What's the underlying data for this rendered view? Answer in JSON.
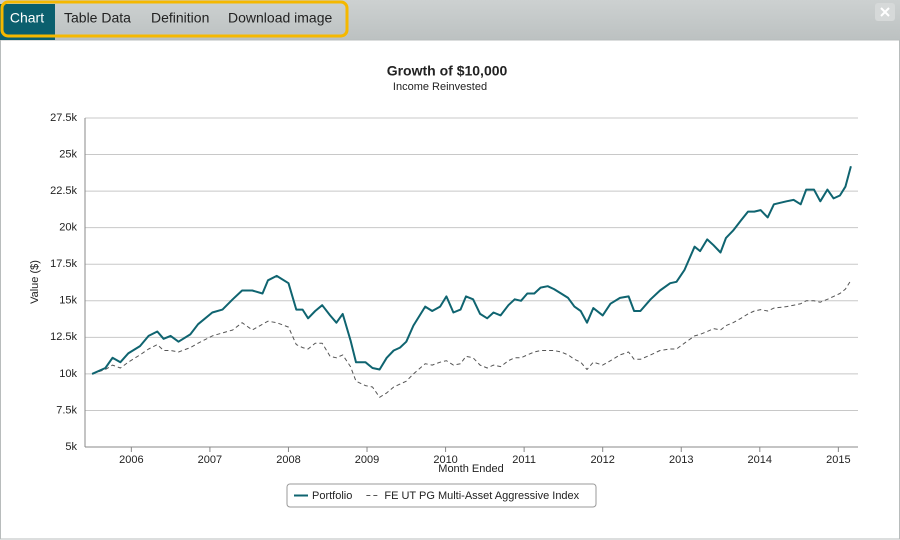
{
  "tabs": [
    "Chart",
    "Table Data",
    "Definition",
    "Download image"
  ],
  "chart_data": {
    "type": "line",
    "title": "Growth of $10,000",
    "subtitle": "Income Reinvested",
    "y_label": "Value ($)",
    "x_label": "Month Ended",
    "x": [
      2005.5,
      2005.67,
      2005.76,
      2005.86,
      2005.96,
      2006.11,
      2006.22,
      2006.33,
      2006.41,
      2006.5,
      2006.6,
      2006.75,
      2006.85,
      2007.03,
      2007.16,
      2007.29,
      2007.41,
      2007.54,
      2007.67,
      2007.74,
      2007.85,
      2008.0,
      2008.1,
      2008.18,
      2008.25,
      2008.34,
      2008.43,
      2008.53,
      2008.61,
      2008.69,
      2008.79,
      2008.86,
      2008.98,
      2009.07,
      2009.16,
      2009.25,
      2009.34,
      2009.42,
      2009.5,
      2009.59,
      2009.74,
      2009.83,
      2009.93,
      2010.01,
      2010.1,
      2010.19,
      2010.26,
      2010.35,
      2010.44,
      2010.53,
      2010.61,
      2010.7,
      2010.8,
      2010.88,
      2010.96,
      2011.04,
      2011.13,
      2011.21,
      2011.3,
      2011.38,
      2011.47,
      2011.56,
      2011.64,
      2011.72,
      2011.8,
      2011.88,
      2012.0,
      2012.1,
      2012.22,
      2012.33,
      2012.4,
      2012.48,
      2012.61,
      2012.73,
      2012.86,
      2012.94,
      2013.04,
      2013.17,
      2013.24,
      2013.33,
      2013.41,
      2013.5,
      2013.57,
      2013.66,
      2013.76,
      2013.85,
      2013.93,
      2014.01,
      2014.1,
      2014.18,
      2014.34,
      2014.43,
      2014.52,
      2014.59,
      2014.69,
      2014.77,
      2014.86,
      2014.94,
      2015.02,
      2015.09,
      2015.16
    ],
    "series": [
      {
        "name": "Portfolio",
        "color": "#0f6470",
        "style": "solid",
        "values": [
          10000,
          10400,
          11100,
          10800,
          11400,
          11900,
          12600,
          12900,
          12400,
          12600,
          12200,
          12700,
          13400,
          14200,
          14400,
          15100,
          15700,
          15700,
          15500,
          16400,
          16700,
          16200,
          14400,
          14400,
          13800,
          14300,
          14700,
          14000,
          13500,
          14100,
          12300,
          10800,
          10800,
          10400,
          10300,
          11100,
          11600,
          11800,
          12200,
          13300,
          14600,
          14300,
          14600,
          15300,
          14200,
          14400,
          15300,
          15100,
          14100,
          13800,
          14200,
          14000,
          14700,
          15100,
          15000,
          15500,
          15500,
          15900,
          16000,
          15800,
          15500,
          15200,
          14600,
          14300,
          13500,
          14500,
          14000,
          14800,
          15200,
          15300,
          14300,
          14300,
          15100,
          15700,
          16200,
          16300,
          17100,
          18700,
          18400,
          19200,
          18800,
          18300,
          19300,
          19800,
          20500,
          21100,
          21100,
          21200,
          20700,
          21600,
          21800,
          21900,
          21600,
          22600,
          22600,
          21800,
          22600,
          22000,
          22200,
          22800,
          24200
        ]
      },
      {
        "name": "FE UT PG Multi-Asset Aggressive Index",
        "color": "#555555",
        "style": "dashed",
        "values": [
          10000,
          10300,
          10600,
          10400,
          10800,
          11300,
          11700,
          12000,
          11600,
          11600,
          11500,
          11800,
          12100,
          12600,
          12800,
          13000,
          13500,
          13000,
          13400,
          13600,
          13500,
          13200,
          12000,
          11800,
          11700,
          12100,
          12100,
          11200,
          11100,
          11300,
          10500,
          9500,
          9200,
          9100,
          8400,
          8700,
          9100,
          9300,
          9500,
          10000,
          10700,
          10600,
          10800,
          10900,
          10600,
          10700,
          11200,
          11100,
          10600,
          10400,
          10600,
          10500,
          10900,
          11100,
          11100,
          11300,
          11500,
          11600,
          11600,
          11600,
          11500,
          11300,
          11000,
          10800,
          10300,
          10800,
          10600,
          10900,
          11300,
          11500,
          11000,
          11000,
          11300,
          11600,
          11700,
          11700,
          12100,
          12600,
          12700,
          12900,
          13100,
          13000,
          13300,
          13500,
          13800,
          14100,
          14300,
          14400,
          14300,
          14500,
          14600,
          14700,
          14800,
          15000,
          15000,
          14900,
          15100,
          15300,
          15500,
          15800,
          16400
        ]
      }
    ],
    "xlim": [
      2005.41,
      2015.25
    ],
    "xticks": [
      2006,
      2007,
      2008,
      2009,
      2010,
      2011,
      2012,
      2013,
      2014,
      2015
    ],
    "ylim": [
      5000,
      27500
    ],
    "yticks": [
      {
        "value": 5000,
        "label": "5k"
      },
      {
        "value": 7500,
        "label": "7.5k"
      },
      {
        "value": 10000,
        "label": "10k"
      },
      {
        "value": 12500,
        "label": "12.5k"
      },
      {
        "value": 15000,
        "label": "15k"
      },
      {
        "value": 17500,
        "label": "17.5k"
      },
      {
        "value": 20000,
        "label": "20k"
      },
      {
        "value": 22500,
        "label": "22.5k"
      },
      {
        "value": 25000,
        "label": "25k"
      },
      {
        "value": 27500,
        "label": "27.5k"
      }
    ],
    "grid": true,
    "legend": "bottom"
  }
}
